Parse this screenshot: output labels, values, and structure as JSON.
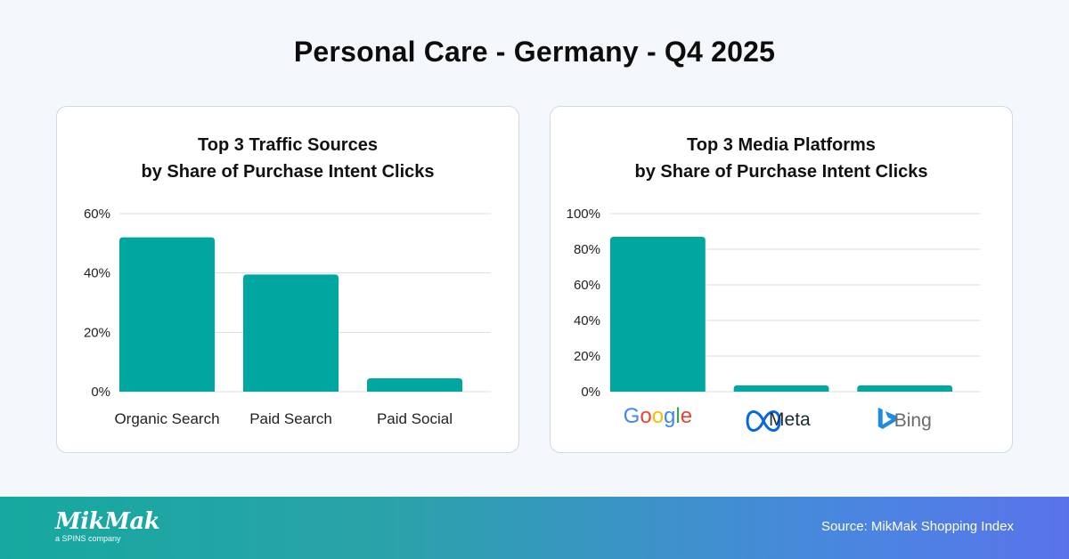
{
  "page": {
    "title": "Personal Care - Germany - Q4 2025"
  },
  "colors": {
    "bar": "#00a6a0",
    "grid": "#d9dde3",
    "axis_text": "#222222"
  },
  "chart_data": [
    {
      "type": "bar",
      "title": "Top 3 Traffic Sources\nby Share of Purchase Intent Clicks",
      "title_lines": [
        "Top 3 Traffic Sources",
        "by Share of Purchase Intent Clicks"
      ],
      "categories": [
        "Organic Search",
        "Paid Search",
        "Paid Social"
      ],
      "values": [
        52,
        39.5,
        4.5
      ],
      "ylim": [
        0,
        60
      ],
      "yticks": [
        "0%",
        "20%",
        "40%",
        "60%"
      ],
      "ytick_values": [
        0,
        20,
        40,
        60
      ],
      "xlabel": "",
      "ylabel": "",
      "grid": true
    },
    {
      "type": "bar",
      "title": "Top 3 Media Platforms\nby Share of Purchase Intent Clicks",
      "title_lines": [
        "Top 3 Media Platforms",
        "by Share of Purchase Intent Clicks"
      ],
      "categories": [
        "Google",
        "Meta",
        "Bing"
      ],
      "category_icons": [
        "google-logo",
        "meta-logo",
        "bing-logo"
      ],
      "values": [
        87,
        3.5,
        3.5
      ],
      "ylim": [
        0,
        100
      ],
      "yticks": [
        "0%",
        "20%",
        "40%",
        "60%",
        "80%",
        "100%"
      ],
      "ytick_values": [
        0,
        20,
        40,
        60,
        80,
        100
      ],
      "xlabel": "",
      "ylabel": "",
      "grid": true
    }
  ],
  "footer": {
    "logo_text": "MikMak",
    "logo_subtext": "a SPINS company",
    "source": "Source: MikMak Shopping Index"
  }
}
